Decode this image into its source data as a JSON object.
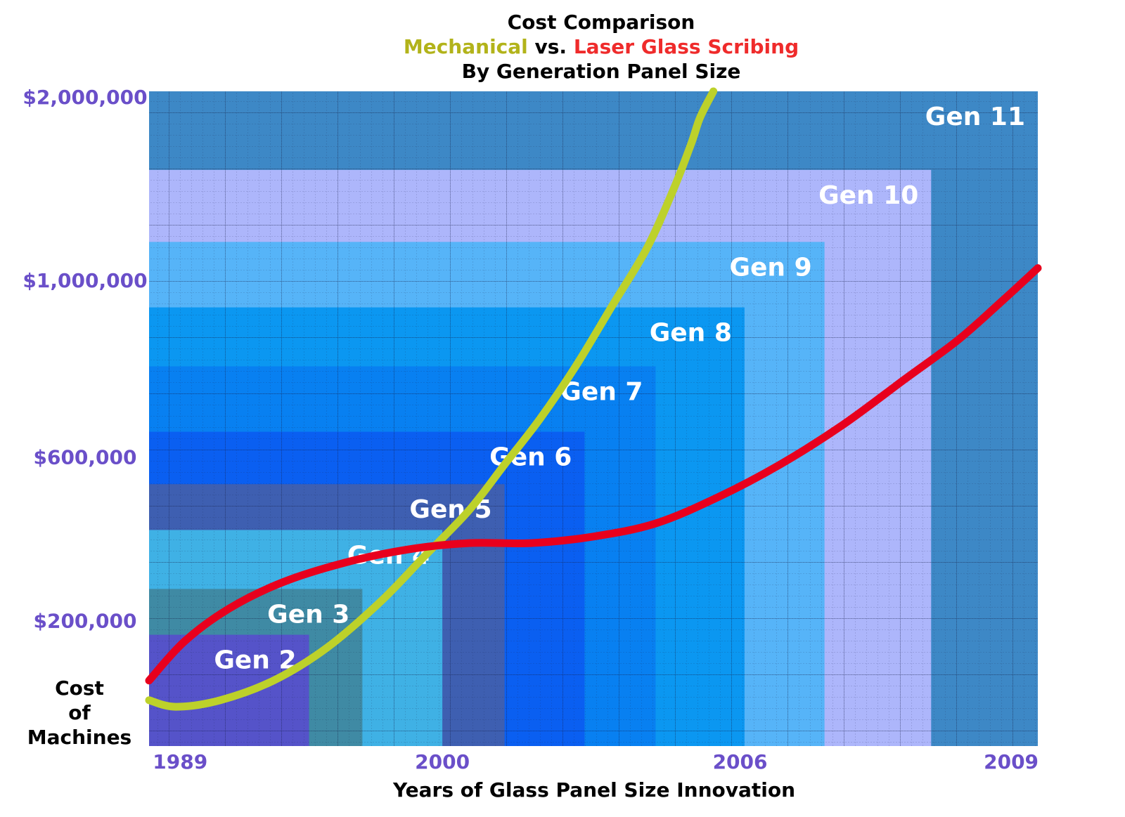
{
  "chart_data": {
    "type": "area",
    "title": "Cost Comparison",
    "subtitle": {
      "series_a": "Mechanical",
      "joiner": "vs.",
      "series_b": "Laser Glass Scribing",
      "line3": "By Generation Panel Size"
    },
    "xlabel": "Years of Glass Panel Size Innovation",
    "ylabel": [
      "Cost",
      "of",
      "Machines"
    ],
    "x_ticks": [
      "1989",
      "2000",
      "2006",
      "2009"
    ],
    "y_ticks": [
      "$200,000",
      "$600,000",
      "$1,000,000",
      "$2,000,000"
    ],
    "colors": {
      "mechanical_text": "#b2b31a",
      "laser_text": "#ef2b2b",
      "mechanical_line": "#bdd12a",
      "laser_line": "#e8001d",
      "ytick": "#6a4fc9",
      "xtick": "#6a4fc9"
    },
    "generations": [
      {
        "label": "Gen 11",
        "right": 1.0,
        "top": 1.0,
        "color": "#3d88c6"
      },
      {
        "label": "Gen 10",
        "right": 0.88,
        "top": 0.88,
        "color": "#adb6fb"
      },
      {
        "label": "Gen 9",
        "right": 0.76,
        "top": 0.77,
        "color": "#56b4f8"
      },
      {
        "label": "Gen 8",
        "right": 0.67,
        "top": 0.67,
        "color": "#0b97f1"
      },
      {
        "label": "Gen 7",
        "right": 0.57,
        "top": 0.58,
        "color": "#0880f1"
      },
      {
        "label": "Gen 6",
        "right": 0.49,
        "top": 0.48,
        "color": "#0a5ff1"
      },
      {
        "label": "Gen 5",
        "right": 0.4,
        "top": 0.4,
        "color": "#3e5fb1"
      },
      {
        "label": "Gen 4",
        "right": 0.33,
        "top": 0.33,
        "color": "#3fb1e5"
      },
      {
        "label": "Gen 3",
        "right": 0.24,
        "top": 0.24,
        "color": "#3f8aa4"
      },
      {
        "label": "Gen 2",
        "right": 0.18,
        "top": 0.17,
        "color": "#5553c9"
      }
    ],
    "series": [
      {
        "name": "Mechanical",
        "x": [
          0.0,
          0.03,
          0.08,
          0.14,
          0.2,
          0.26,
          0.31,
          0.36,
          0.4,
          0.44,
          0.48,
          0.52,
          0.56,
          0.59,
          0.61,
          0.62,
          0.635
        ],
        "y": [
          0.07,
          0.06,
          0.07,
          0.1,
          0.15,
          0.22,
          0.29,
          0.36,
          0.43,
          0.5,
          0.58,
          0.67,
          0.76,
          0.85,
          0.92,
          0.96,
          1.0
        ]
      },
      {
        "name": "Laser Glass Scribing",
        "x": [
          0.0,
          0.04,
          0.09,
          0.15,
          0.22,
          0.29,
          0.36,
          0.43,
          0.5,
          0.57,
          0.64,
          0.71,
          0.78,
          0.85,
          0.91,
          0.96,
          1.0
        ],
        "y": [
          0.1,
          0.16,
          0.21,
          0.25,
          0.28,
          0.3,
          0.31,
          0.31,
          0.32,
          0.34,
          0.38,
          0.43,
          0.49,
          0.56,
          0.62,
          0.68,
          0.73
        ]
      }
    ]
  }
}
